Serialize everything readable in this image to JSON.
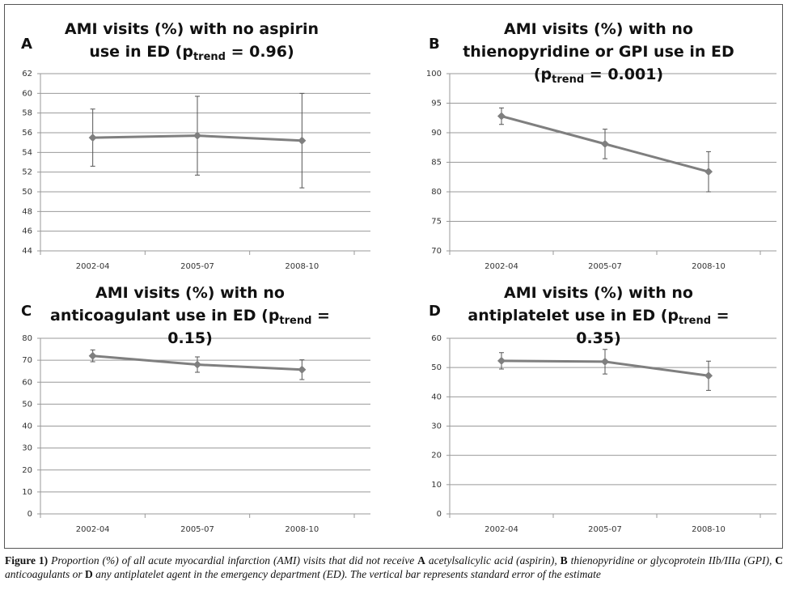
{
  "chart_data": [
    {
      "type": "line",
      "panel_label": "A",
      "title": "AMI visits (%) with no aspirin use in ED (p",
      "title_sub": "trend",
      "title_end": " = 0.96)",
      "categories": [
        "2002-04",
        "2005-07",
        "2008-10"
      ],
      "values": [
        55.5,
        55.7,
        55.2
      ],
      "error": [
        2.9,
        4.0,
        4.8
      ],
      "color": "#7f7f7f",
      "ylim": [
        44,
        62
      ],
      "yticks": [
        44,
        46,
        48,
        50,
        52,
        54,
        56,
        58,
        60,
        62
      ],
      "grid": true
    },
    {
      "type": "line",
      "panel_label": "B",
      "title": "AMI visits (%) with no thienopyridine or GPI use in ED (p",
      "title_sub": "trend",
      "title_end": " = 0.001)",
      "categories": [
        "2002-04",
        "2005-07",
        "2008-10"
      ],
      "values": [
        92.8,
        88.1,
        83.4
      ],
      "error": [
        1.4,
        2.5,
        3.4
      ],
      "color": "#7f7f7f",
      "ylim": [
        70,
        100
      ],
      "yticks": [
        70,
        75,
        80,
        85,
        90,
        95,
        100
      ],
      "grid": true
    },
    {
      "type": "line",
      "panel_label": "C",
      "title": "AMI visits (%) with no anticoagulant use in ED (p",
      "title_sub": "trend",
      "title_end": " = 0.15)",
      "categories": [
        "2002-04",
        "2005-07",
        "2008-10"
      ],
      "values": [
        72.0,
        68.0,
        65.7
      ],
      "error": [
        2.7,
        3.5,
        4.5
      ],
      "color": "#7f7f7f",
      "ylim": [
        0,
        80
      ],
      "yticks": [
        0,
        10,
        20,
        30,
        40,
        50,
        60,
        70,
        80
      ],
      "grid": true
    },
    {
      "type": "line",
      "panel_label": "D",
      "title": "AMI visits (%) with no antiplatelet use in ED (p",
      "title_sub": "trend",
      "title_end": " = 0.35)",
      "categories": [
        "2002-04",
        "2005-07",
        "2008-10"
      ],
      "values": [
        52.3,
        52.0,
        47.2
      ],
      "error": [
        2.8,
        4.2,
        5.0
      ],
      "color": "#7f7f7f",
      "ylim": [
        0,
        60
      ],
      "yticks": [
        0,
        10,
        20,
        30,
        40,
        50,
        60
      ],
      "grid": true
    }
  ],
  "caption": [
    {
      "text": "Figure 1)",
      "style": "bold"
    },
    {
      "text": " Proportion (%) of all acute myocardial infarction (AMI) visits that did not receive ",
      "style": "italic"
    },
    {
      "text": "A",
      "style": "bold"
    },
    {
      "text": " acetylsalicylic acid (aspirin), ",
      "style": "italic"
    },
    {
      "text": "B",
      "style": "bold"
    },
    {
      "text": " thienopyridine or glycoprotein IIb/IIIa (GPI), ",
      "style": "italic"
    },
    {
      "text": "C",
      "style": "bold"
    },
    {
      "text": " anticoagulants or ",
      "style": "italic"
    },
    {
      "text": "D",
      "style": "bold"
    },
    {
      "text": " any antiplatelet agent in the emergency department (ED). The vertical bar represents standard error of the estimate",
      "style": "italic"
    }
  ]
}
